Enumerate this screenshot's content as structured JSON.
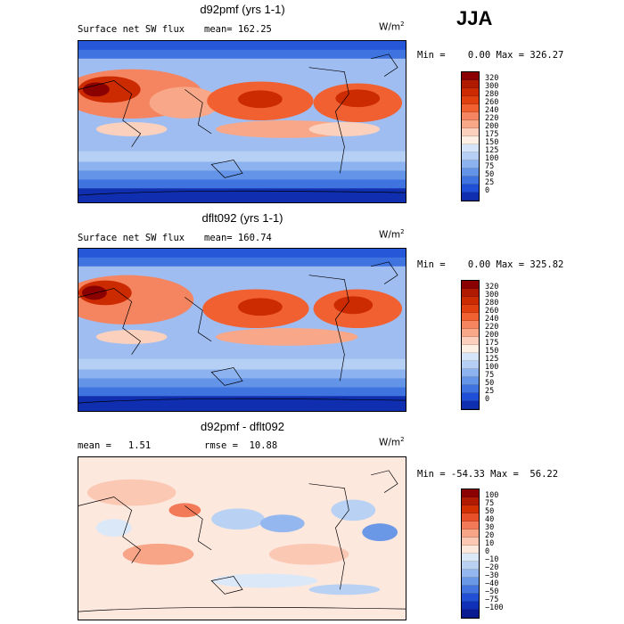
{
  "season": "JJA",
  "panels": [
    {
      "id": "top",
      "title": "d92pmf (yrs 1-1)",
      "variable": "Surface net SW flux",
      "stat_text": "mean= 162.25",
      "units_base": "W/m",
      "units_exp": "2",
      "minmax_text": "Min =    0.00 Max = 326.27",
      "levels": [
        "320",
        "300",
        "280",
        "260",
        "240",
        "220",
        "200",
        "175",
        "150",
        "125",
        "100",
        "75",
        "50",
        "25",
        "0"
      ],
      "colors": [
        "#8b0000",
        "#b01a00",
        "#cc2a00",
        "#e04010",
        "#f06030",
        "#f58460",
        "#f8a888",
        "#fbd1bd",
        "#fff0e6",
        "#d6e6fa",
        "#b5cff5",
        "#8cb2ef",
        "#6494e8",
        "#3f73e0",
        "#1f4fd6",
        "#0f2fb0"
      ]
    },
    {
      "id": "middle",
      "title": "dflt092 (yrs 1-1)",
      "variable": "Surface net SW flux",
      "stat_text": "mean= 160.74",
      "units_base": "W/m",
      "units_exp": "2",
      "minmax_text": "Min =    0.00 Max = 325.82",
      "levels": [
        "320",
        "300",
        "280",
        "260",
        "240",
        "220",
        "200",
        "175",
        "150",
        "125",
        "100",
        "75",
        "50",
        "25",
        "0"
      ],
      "colors": [
        "#8b0000",
        "#b01a00",
        "#cc2a00",
        "#e04010",
        "#f06030",
        "#f58460",
        "#f8a888",
        "#fbd1bd",
        "#fff0e6",
        "#d6e6fa",
        "#b5cff5",
        "#8cb2ef",
        "#6494e8",
        "#3f73e0",
        "#1f4fd6",
        "#0f2fb0"
      ]
    },
    {
      "id": "bottom",
      "title": "d92pmf - dflt092",
      "stat_text": "mean =   1.51",
      "rmse_text": "rmse =  10.88",
      "units_base": "W/m",
      "units_exp": "2",
      "minmax_text": "Min = -54.33 Max =  56.22",
      "levels": [
        "100",
        "75",
        "50",
        "40",
        "30",
        "20",
        "10",
        "0",
        "−10",
        "−20",
        "−30",
        "−40",
        "−50",
        "−75",
        "−100"
      ],
      "colors": [
        "#8b0000",
        "#b01a00",
        "#d23000",
        "#e8502a",
        "#f27a58",
        "#f7a487",
        "#fbc8b4",
        "#fde8de",
        "#dbe8f8",
        "#b9d2f3",
        "#93b7ee",
        "#6b98e6",
        "#4474dd",
        "#2250d4",
        "#1130b8",
        "#0a1a90"
      ]
    }
  ]
}
